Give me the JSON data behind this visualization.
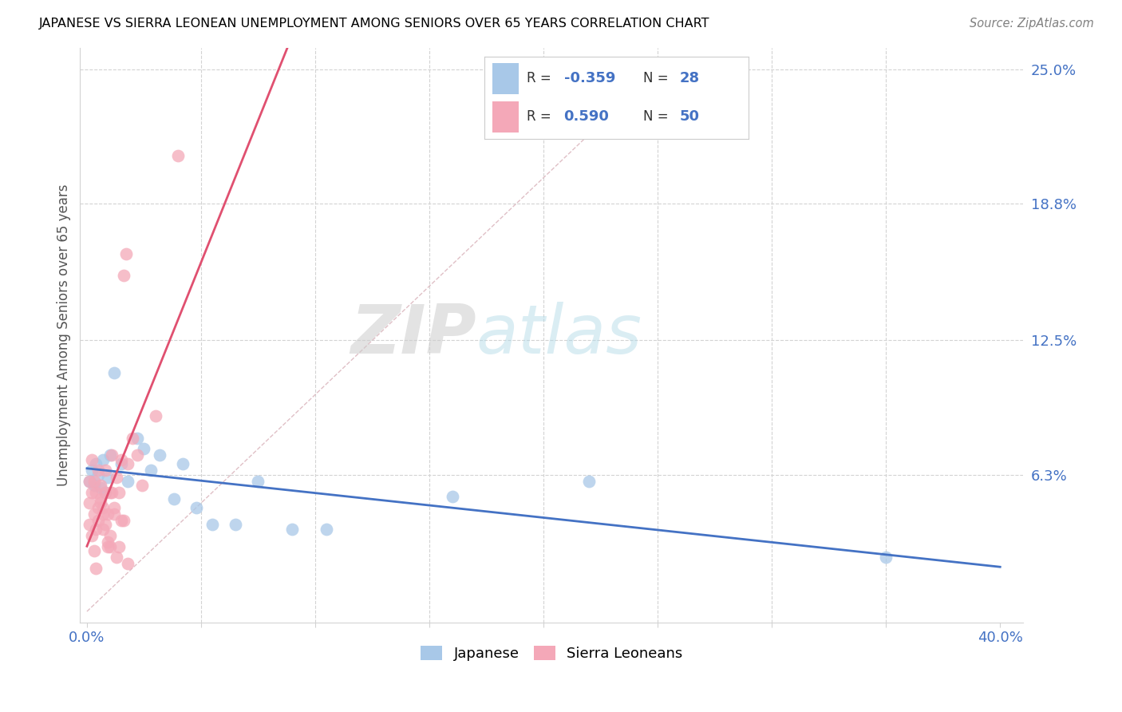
{
  "title": "JAPANESE VS SIERRA LEONEAN UNEMPLOYMENT AMONG SENIORS OVER 65 YEARS CORRELATION CHART",
  "source": "Source: ZipAtlas.com",
  "ylabel": "Unemployment Among Seniors over 65 years",
  "xlim": [
    -0.003,
    0.41
  ],
  "ylim": [
    -0.005,
    0.26
  ],
  "yticks_right": [
    0.063,
    0.125,
    0.188,
    0.25
  ],
  "yticklabels_right": [
    "6.3%",
    "12.5%",
    "18.8%",
    "25.0%"
  ],
  "japanese_color": "#a8c8e8",
  "sierra_color": "#f4a8b8",
  "japanese_trend_color": "#4472c4",
  "sierra_trend_color": "#e05070",
  "diag_color": "#d4a0a8",
  "japanese_x": [
    0.001,
    0.002,
    0.003,
    0.004,
    0.005,
    0.006,
    0.007,
    0.008,
    0.009,
    0.01,
    0.012,
    0.015,
    0.018,
    0.022,
    0.025,
    0.028,
    0.032,
    0.038,
    0.042,
    0.048,
    0.055,
    0.065,
    0.075,
    0.09,
    0.105,
    0.16,
    0.22,
    0.35
  ],
  "japanese_y": [
    0.06,
    0.065,
    0.058,
    0.068,
    0.063,
    0.057,
    0.07,
    0.055,
    0.062,
    0.072,
    0.11,
    0.068,
    0.06,
    0.08,
    0.075,
    0.065,
    0.072,
    0.052,
    0.068,
    0.048,
    0.04,
    0.04,
    0.06,
    0.038,
    0.038,
    0.053,
    0.06,
    0.025
  ],
  "sierra_x": [
    0.001,
    0.001,
    0.002,
    0.002,
    0.003,
    0.003,
    0.004,
    0.004,
    0.005,
    0.005,
    0.006,
    0.006,
    0.007,
    0.007,
    0.008,
    0.008,
    0.009,
    0.009,
    0.01,
    0.01,
    0.011,
    0.012,
    0.013,
    0.014,
    0.015,
    0.016,
    0.018,
    0.02,
    0.022,
    0.024,
    0.001,
    0.002,
    0.003,
    0.004,
    0.005,
    0.006,
    0.007,
    0.008,
    0.009,
    0.01,
    0.011,
    0.012,
    0.013,
    0.014,
    0.015,
    0.016,
    0.017,
    0.018,
    0.03,
    0.04
  ],
  "sierra_y": [
    0.05,
    0.04,
    0.055,
    0.035,
    0.06,
    0.045,
    0.055,
    0.038,
    0.048,
    0.042,
    0.052,
    0.058,
    0.038,
    0.048,
    0.065,
    0.04,
    0.032,
    0.045,
    0.055,
    0.03,
    0.055,
    0.045,
    0.025,
    0.03,
    0.07,
    0.042,
    0.068,
    0.08,
    0.072,
    0.058,
    0.06,
    0.07,
    0.028,
    0.02,
    0.065,
    0.05,
    0.045,
    0.055,
    0.03,
    0.035,
    0.072,
    0.048,
    0.062,
    0.055,
    0.042,
    0.155,
    0.165,
    0.022,
    0.09,
    0.21
  ]
}
